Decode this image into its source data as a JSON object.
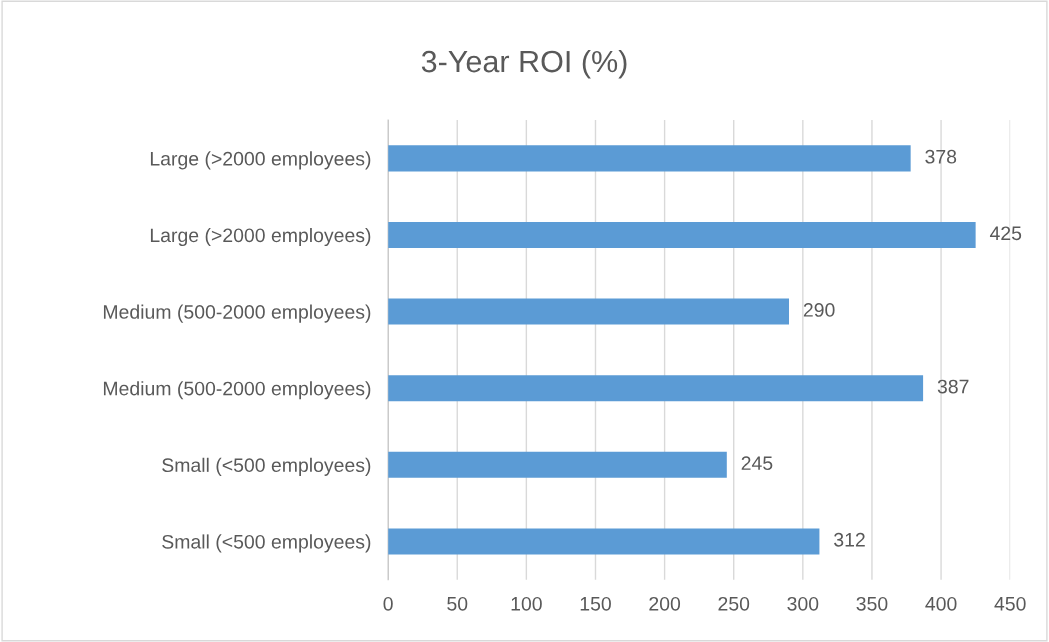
{
  "chart_data": {
    "type": "bar",
    "orientation": "horizontal",
    "title": "3-Year ROI (%)",
    "categories": [
      "Large (>2000 employees)",
      "Large (>2000 employees)",
      "Medium (500-2000 employees)",
      "Medium (500-2000 employees)",
      "Small (<500 employees)",
      "Small (<500 employees)"
    ],
    "values": [
      378,
      425,
      290,
      387,
      245,
      312
    ],
    "color": "#5b9bd5",
    "xlim": [
      0,
      450
    ],
    "xticks": [
      0,
      50,
      100,
      150,
      200,
      250,
      300,
      350,
      400,
      450
    ],
    "grid": "x",
    "data_labels": true,
    "legend": false
  }
}
